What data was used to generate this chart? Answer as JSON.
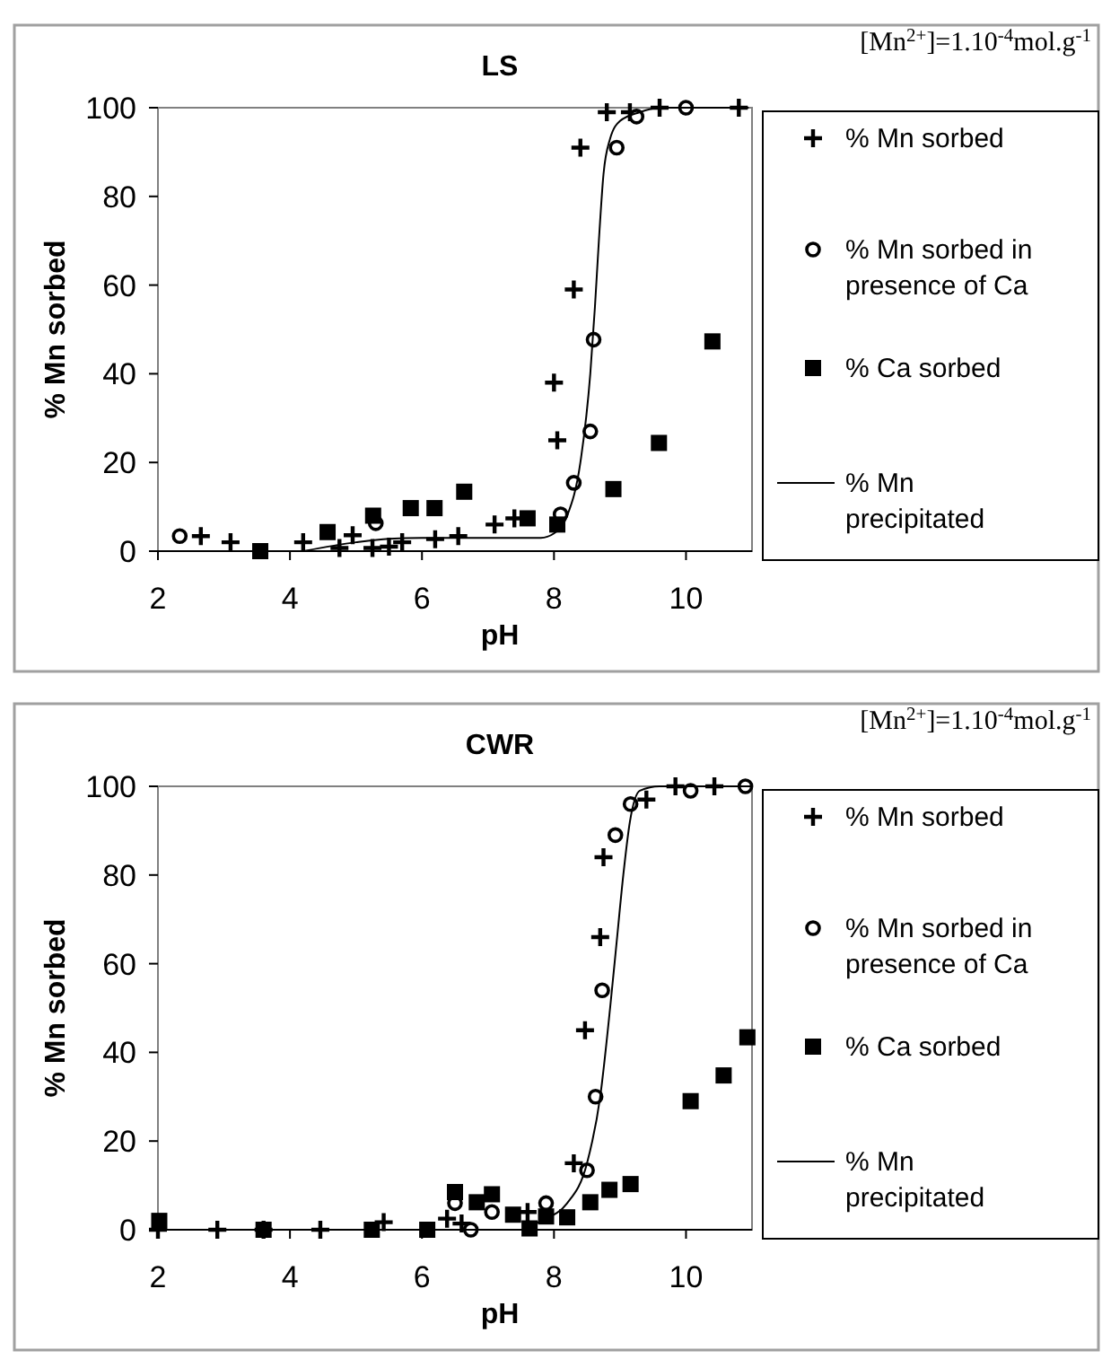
{
  "chart_data": [
    {
      "type": "scatter",
      "title": "LS",
      "xlabel": "pH",
      "ylabel": "% Mn sorbed",
      "annotations": [
        "[Mn$^{2+}$]=1.10$^{-4}$mol.g$^{-1}$"
      ],
      "xlim": [
        2,
        11
      ],
      "ylim": [
        0,
        100
      ],
      "xticks": [
        2,
        4,
        6,
        8,
        10
      ],
      "yticks": [
        0,
        20,
        40,
        60,
        80,
        100
      ],
      "grid": false,
      "legend": "right",
      "series": [
        {
          "name": "% Mn sorbed",
          "marker": "cross",
          "color": "#000000",
          "x": [
            2.65,
            3.1,
            4.2,
            4.75,
            4.95,
            5.25,
            5.5,
            5.7,
            6.2,
            6.55,
            7.1,
            7.4,
            8.0,
            8.05,
            8.3,
            8.4,
            8.8,
            9.15,
            9.6,
            10.8
          ],
          "values": [
            3.4,
            2,
            2,
            0.7,
            3.6,
            0.7,
            1,
            2,
            2.7,
            3.4,
            6,
            7.4,
            38,
            25,
            59,
            91,
            99,
            99,
            100,
            100
          ]
        },
        {
          "name": "% Mn sorbed in presence of Ca",
          "marker": "circle",
          "color": "#000000",
          "x": [
            2.33,
            5.3,
            8.1,
            8.3,
            8.55,
            8.6,
            8.95,
            9.25,
            10.0
          ],
          "values": [
            3.4,
            6.3,
            8.3,
            15.4,
            27,
            47.7,
            91,
            98,
            100
          ]
        },
        {
          "name": "% Ca sorbed",
          "marker": "square",
          "color": "#000000",
          "x": [
            3.55,
            4.57,
            5.26,
            5.83,
            6.19,
            6.64,
            7.6,
            8.05,
            8.9,
            9.59,
            10.4
          ],
          "values": [
            0,
            4.3,
            8,
            9.7,
            9.7,
            13.4,
            7.4,
            6,
            14,
            24.4,
            47.3
          ]
        },
        {
          "name": "% Mn precipitated",
          "type": "line",
          "color": "#000000",
          "x": [
            4.2,
            5,
            5.5,
            6,
            7,
            7.8,
            8.0,
            8.2,
            8.4,
            8.55,
            8.62,
            8.68,
            8.75,
            8.85,
            9.0,
            9.3,
            9.6,
            10.95
          ],
          "values": [
            0,
            2,
            2.8,
            3,
            3,
            3,
            4,
            8,
            20,
            40,
            55,
            70,
            85,
            93,
            97,
            99,
            100,
            100
          ]
        }
      ]
    },
    {
      "type": "scatter",
      "title": "CWR",
      "xlabel": "pH",
      "ylabel": "% Mn sorbed",
      "annotations": [
        "[Mn$^{2+}$]=1.10$^{-4}$mol.g$^{-1}$"
      ],
      "xlim": [
        2,
        11
      ],
      "ylim": [
        0,
        100
      ],
      "xticks": [
        2,
        4,
        6,
        8,
        10
      ],
      "yticks": [
        0,
        20,
        40,
        60,
        80,
        100
      ],
      "grid": false,
      "legend": "right",
      "series": [
        {
          "name": "% Mn sorbed",
          "marker": "cross",
          "color": "#000000",
          "x": [
            2,
            2.9,
            3.6,
            4.46,
            5.42,
            6.38,
            6.6,
            7.6,
            8.3,
            8.47,
            8.7,
            8.75,
            9.4,
            9.84,
            10.43
          ],
          "values": [
            0,
            0,
            0,
            0,
            1.7,
            2.5,
            1.4,
            4,
            15,
            45,
            66,
            84,
            97,
            100,
            100
          ]
        },
        {
          "name": "% Mn sorbed in presence of Ca",
          "marker": "circle",
          "color": "#000000",
          "x": [
            6.5,
            6.74,
            7.06,
            7.88,
            8.5,
            8.63,
            8.73,
            8.93,
            9.16,
            10.07,
            10.9
          ],
          "values": [
            6,
            0,
            4,
            6,
            13.4,
            30,
            54,
            89,
            96,
            99,
            100
          ]
        },
        {
          "name": "% Ca sorbed",
          "marker": "square",
          "color": "#000000",
          "x": [
            2.02,
            3.6,
            5.24,
            6.08,
            6.5,
            6.83,
            7.06,
            7.38,
            7.63,
            7.88,
            8.2,
            8.55,
            8.84,
            9.16,
            10.07,
            10.57,
            10.93
          ],
          "values": [
            2,
            0,
            0,
            0,
            8.5,
            6.2,
            8,
            3.4,
            0.3,
            3,
            2.8,
            6.2,
            9,
            10.3,
            29,
            34.8,
            43.4
          ]
        },
        {
          "name": "% Mn precipitated",
          "type": "line",
          "color": "#000000",
          "x": [
            2,
            7.5,
            7.8,
            8.2,
            8.5,
            8.7,
            8.85,
            8.95,
            9.05,
            9.15,
            9.3,
            9.6,
            11
          ],
          "values": [
            0,
            0,
            2,
            6,
            15,
            30,
            50,
            65,
            80,
            92,
            99,
            100,
            100
          ]
        }
      ]
    }
  ]
}
